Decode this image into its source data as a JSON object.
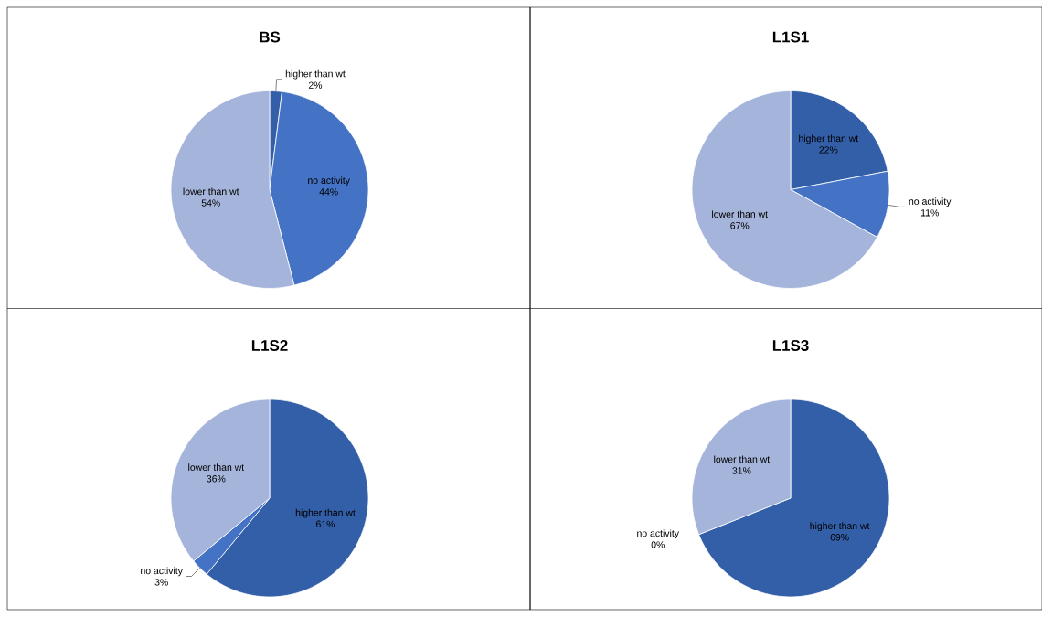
{
  "chart_data": [
    {
      "type": "pie",
      "title": "BS",
      "categories": [
        "higher than wt",
        "no activity",
        "lower than wt"
      ],
      "values": [
        2,
        44,
        54
      ],
      "value_labels": [
        "2%",
        "44%",
        "54%"
      ],
      "colors": [
        "#335ea8",
        "#4472c4",
        "#a5b4da"
      ]
    },
    {
      "type": "pie",
      "title": "L1S1",
      "categories": [
        "higher than wt",
        "no activity",
        "lower than wt"
      ],
      "values": [
        22,
        11,
        67
      ],
      "value_labels": [
        "22%",
        "11%",
        "67%"
      ],
      "colors": [
        "#335ea8",
        "#4472c4",
        "#a5b4da"
      ]
    },
    {
      "type": "pie",
      "title": "L1S2",
      "categories": [
        "higher than wt",
        "no activity",
        "lower than wt"
      ],
      "values": [
        61,
        3,
        36
      ],
      "value_labels": [
        "61%",
        "3%",
        "36%"
      ],
      "colors": [
        "#335ea8",
        "#4472c4",
        "#a5b4da"
      ]
    },
    {
      "type": "pie",
      "title": "L1S3",
      "categories": [
        "higher than wt",
        "no activity",
        "lower than wt"
      ],
      "values": [
        69,
        0,
        31
      ],
      "value_labels": [
        "69%",
        "0%",
        "31%"
      ],
      "colors": [
        "#335ea8",
        "#4472c4",
        "#a5b4da"
      ]
    }
  ]
}
